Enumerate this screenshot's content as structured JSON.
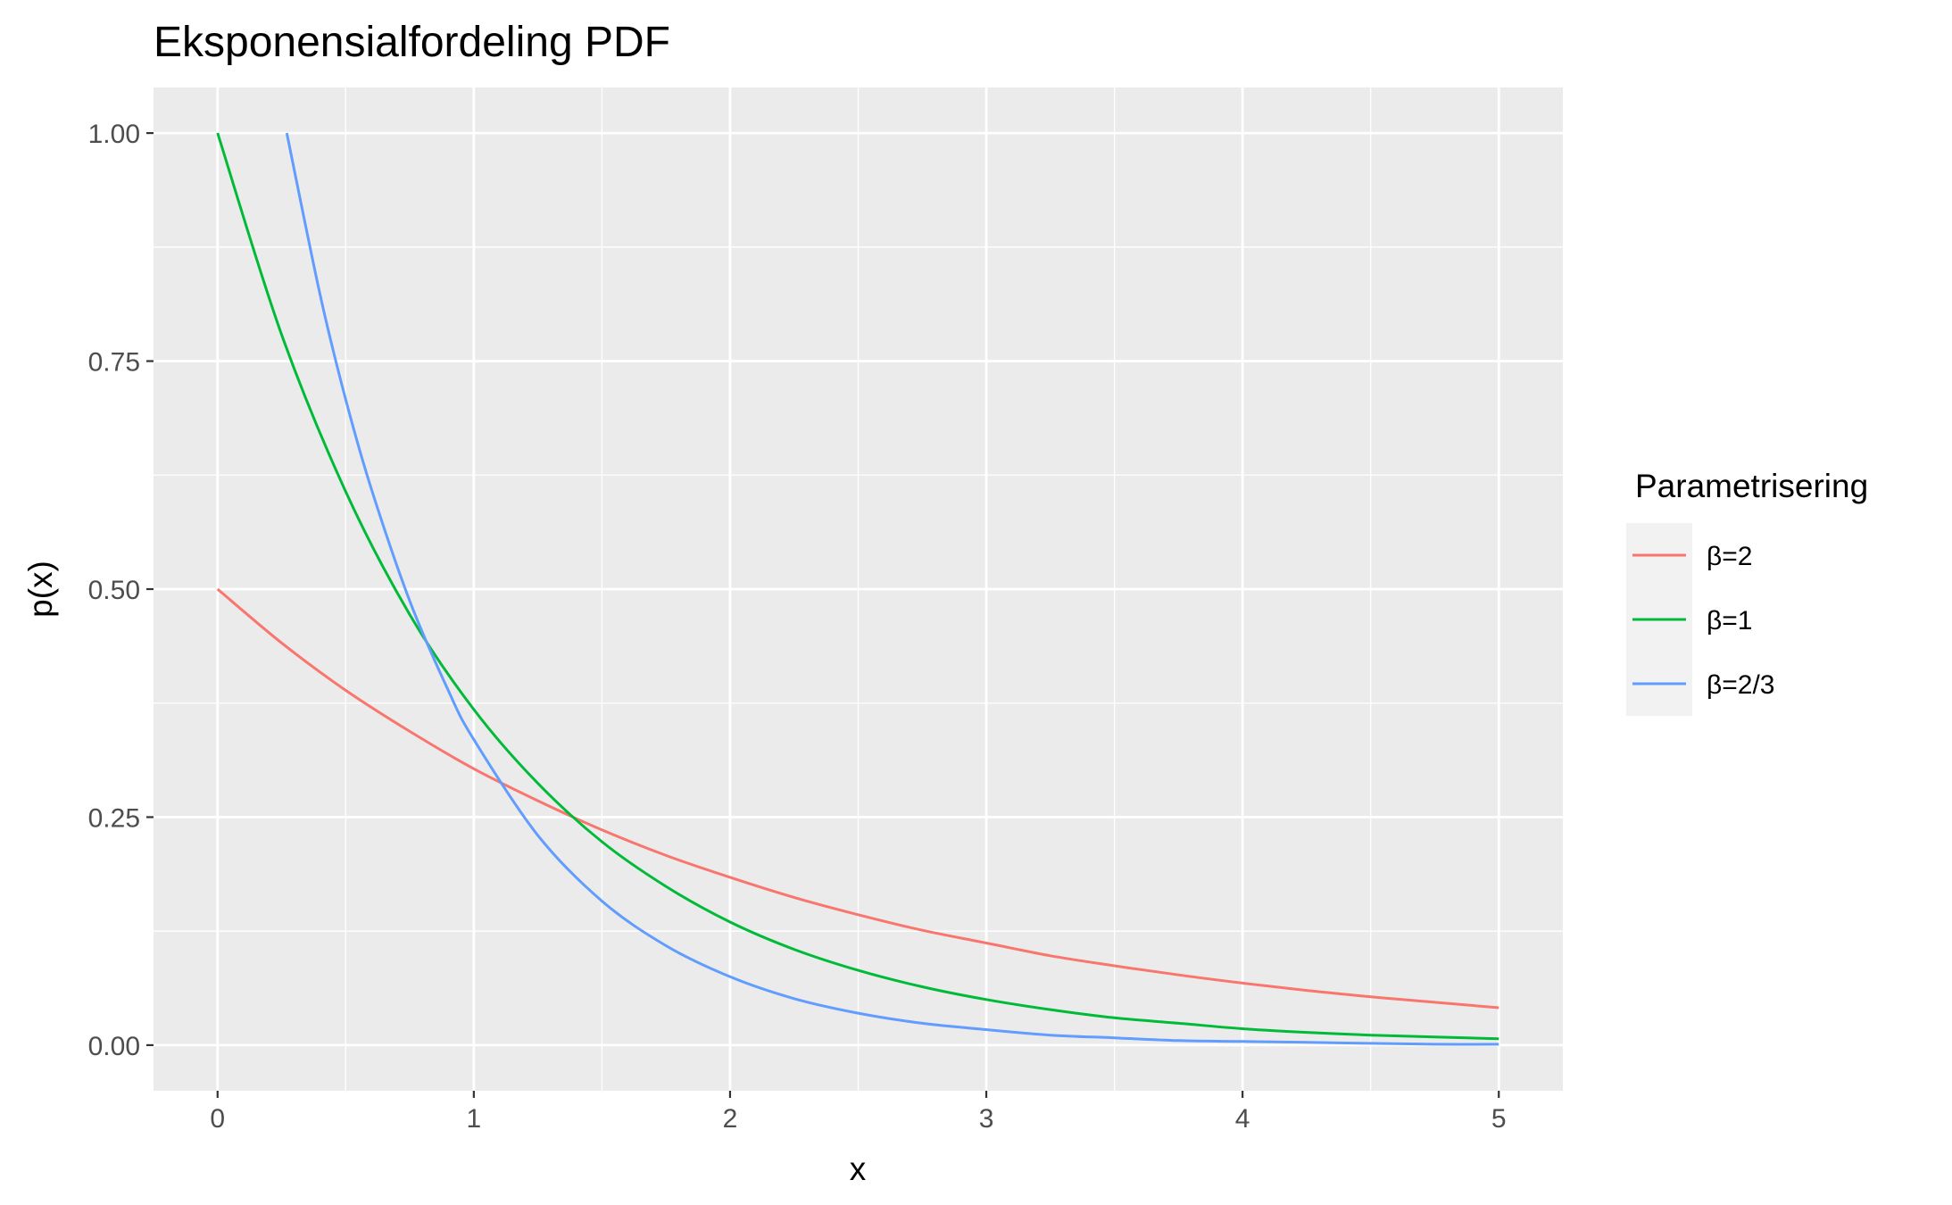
{
  "chart_data": {
    "type": "line",
    "title": "Eksponensialfordeling PDF",
    "xlabel": "x",
    "ylabel": "p(x)",
    "xlim": [
      -0.25,
      5.25
    ],
    "ylim": [
      -0.05,
      1.05
    ],
    "x_ticks": [
      0,
      1,
      2,
      3,
      4,
      5
    ],
    "x_tick_labels": [
      "0",
      "1",
      "2",
      "3",
      "4",
      "5"
    ],
    "y_ticks": [
      0,
      0.25,
      0.5,
      0.75,
      1
    ],
    "y_tick_labels": [
      "0.00",
      "0.25",
      "0.50",
      "0.75",
      "1.00"
    ],
    "grid": true,
    "legend": {
      "title": "Parametrisering",
      "position": "right"
    },
    "series": [
      {
        "name": "β=2",
        "color": "#F8766D",
        "x": [
          0,
          0.25,
          0.5,
          0.75,
          1,
          1.25,
          1.5,
          1.75,
          2,
          2.25,
          2.5,
          2.75,
          3,
          3.25,
          3.5,
          3.75,
          4,
          4.25,
          4.5,
          4.75,
          5
        ],
        "y": [
          0.5,
          0.441,
          0.389,
          0.344,
          0.303,
          0.268,
          0.236,
          0.208,
          0.184,
          0.162,
          0.143,
          0.126,
          0.112,
          0.098,
          0.087,
          0.077,
          0.068,
          0.06,
          0.053,
          0.047,
          0.041
        ]
      },
      {
        "name": "β=1",
        "color": "#00BA38",
        "x": [
          0,
          0.25,
          0.5,
          0.75,
          1,
          1.25,
          1.5,
          1.75,
          2,
          2.25,
          2.5,
          2.75,
          3,
          3.25,
          3.5,
          3.75,
          4,
          4.25,
          4.5,
          4.75,
          5
        ],
        "y": [
          1.0,
          0.779,
          0.607,
          0.472,
          0.368,
          0.287,
          0.223,
          0.174,
          0.135,
          0.105,
          0.082,
          0.064,
          0.05,
          0.039,
          0.03,
          0.024,
          0.018,
          0.014,
          0.011,
          0.009,
          0.007
        ]
      },
      {
        "name": "β=2/3",
        "color": "#619CFF",
        "x": [
          0.27,
          0.4,
          0.5,
          0.6,
          0.75,
          0.9,
          1,
          1.25,
          1.5,
          1.75,
          2,
          2.25,
          2.5,
          2.75,
          3,
          3.25,
          3.5,
          3.75,
          4,
          4.25,
          4.5,
          4.75,
          5
        ],
        "y": [
          1.0,
          0.823,
          0.708,
          0.61,
          0.487,
          0.389,
          0.335,
          0.23,
          0.158,
          0.109,
          0.075,
          0.051,
          0.035,
          0.024,
          0.017,
          0.011,
          0.008,
          0.005,
          0.004,
          0.003,
          0.002,
          0.001,
          0.001
        ]
      }
    ]
  }
}
